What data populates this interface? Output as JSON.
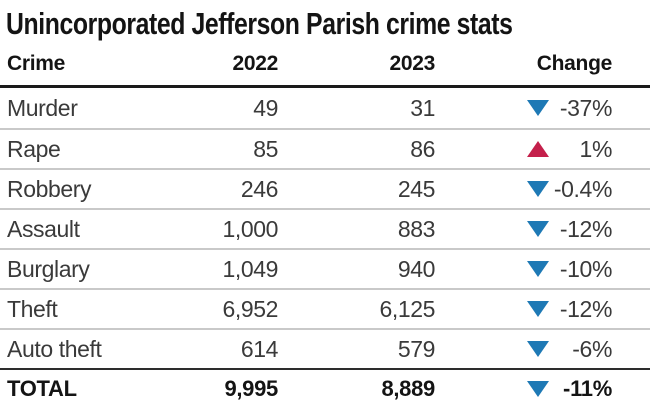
{
  "title": "Unincorporated Jefferson Parish crime stats",
  "table": {
    "columns": [
      "Crime",
      "2022",
      "2023",
      "Change"
    ],
    "rows": [
      {
        "crime": "Murder",
        "y2022": "49",
        "y2023": "31",
        "change": "-37%",
        "direction": "down"
      },
      {
        "crime": "Rape",
        "y2022": "85",
        "y2023": "86",
        "change": "1%",
        "direction": "up"
      },
      {
        "crime": "Robbery",
        "y2022": "246",
        "y2023": "245",
        "change": "-0.4%",
        "direction": "down"
      },
      {
        "crime": "Assault",
        "y2022": "1,000",
        "y2023": "883",
        "change": "-12%",
        "direction": "down"
      },
      {
        "crime": "Burglary",
        "y2022": "1,049",
        "y2023": "940",
        "change": "-10%",
        "direction": "down"
      },
      {
        "crime": "Theft",
        "y2022": "6,952",
        "y2023": "6,125",
        "change": "-12%",
        "direction": "down"
      },
      {
        "crime": "Auto theft",
        "y2022": "614",
        "y2023": "579",
        "change": "-6%",
        "direction": "down"
      }
    ],
    "total": {
      "crime": "TOTAL",
      "y2022": "9,995",
      "y2023": "8,889",
      "change": "-11%",
      "direction": "down"
    }
  },
  "colors": {
    "down_arrow": "#1e79b5",
    "up_arrow": "#c4204b",
    "header_rule": "#1a1a1a",
    "row_rule": "#c9c9c9",
    "total_rule": "#2d2d2d",
    "text_dark": "#141414",
    "text_body": "#3a3a3a",
    "background": "#ffffff"
  },
  "chart_data": {
    "type": "table",
    "title": "Unincorporated Jefferson Parish crime stats",
    "columns": [
      "Crime",
      "2022",
      "2023",
      "Change"
    ],
    "rows": [
      [
        "Murder",
        49,
        31,
        "-37%"
      ],
      [
        "Rape",
        85,
        86,
        "1%"
      ],
      [
        "Robbery",
        246,
        245,
        "-0.4%"
      ],
      [
        "Assault",
        1000,
        883,
        "-12%"
      ],
      [
        "Burglary",
        1049,
        940,
        "-10%"
      ],
      [
        "Theft",
        6952,
        6125,
        "-12%"
      ],
      [
        "Auto theft",
        614,
        579,
        "-6%"
      ]
    ],
    "total_row": [
      "TOTAL",
      9995,
      8889,
      "-11%"
    ],
    "change_indicator_legend": {
      "down_triangle": "decrease (blue)",
      "up_triangle": "increase (red)"
    }
  }
}
